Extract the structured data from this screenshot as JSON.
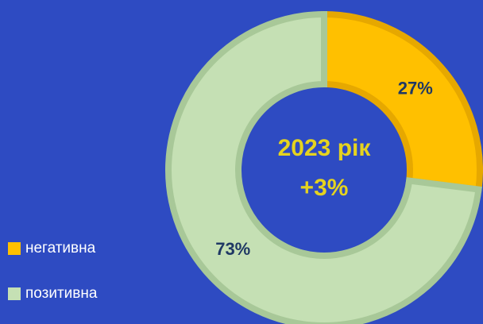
{
  "chart_data": {
    "type": "donut",
    "categories": [
      "негативна",
      "позитивна"
    ],
    "values": [
      27,
      73
    ],
    "value_labels": [
      "27%",
      "73%"
    ],
    "colors": [
      "#ffc000",
      "#c5e0b4"
    ],
    "center_text": [
      "2023 рік",
      "+3%"
    ],
    "legend": "bottom-left"
  }
}
